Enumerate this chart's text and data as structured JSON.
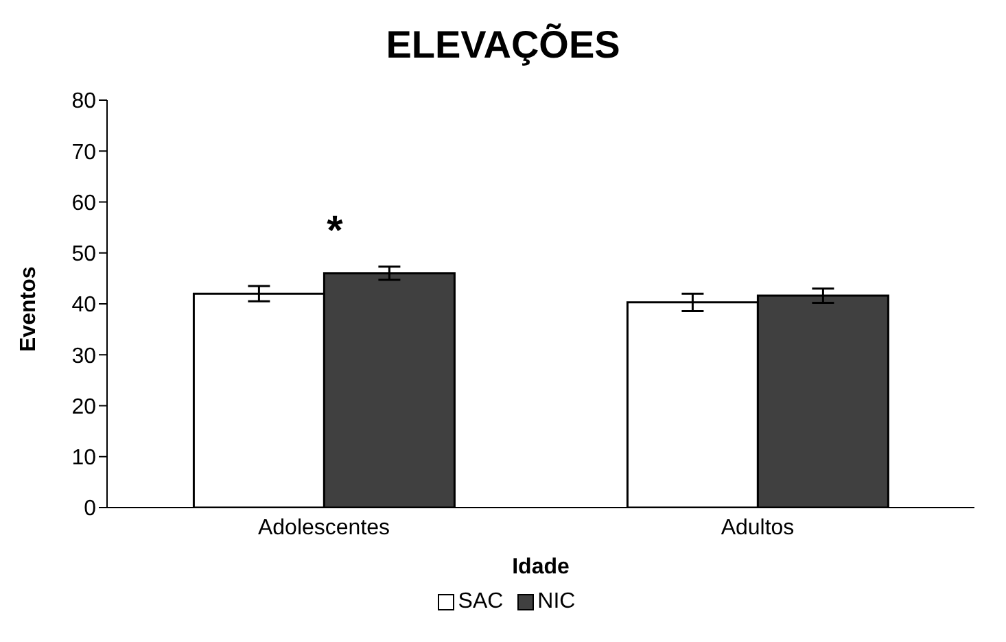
{
  "chart_data": {
    "type": "bar",
    "title": "ELEVAÇÕES",
    "xlabel": "Idade",
    "ylabel": "Eventos",
    "categories": [
      "Adolescentes",
      "Adultos"
    ],
    "series": [
      {
        "name": "SAC",
        "color": "#ffffff",
        "values": [
          42,
          40.3
        ],
        "errors": [
          1.5,
          1.7
        ]
      },
      {
        "name": "NIC",
        "color": "#404040",
        "values": [
          46,
          41.6
        ],
        "errors": [
          1.3,
          1.4
        ]
      }
    ],
    "ylim": [
      0,
      80
    ],
    "yticks": [
      0,
      10,
      20,
      30,
      40,
      50,
      60,
      70,
      80
    ],
    "grid": false,
    "legend": "bottom",
    "annotations": [
      "*"
    ]
  }
}
